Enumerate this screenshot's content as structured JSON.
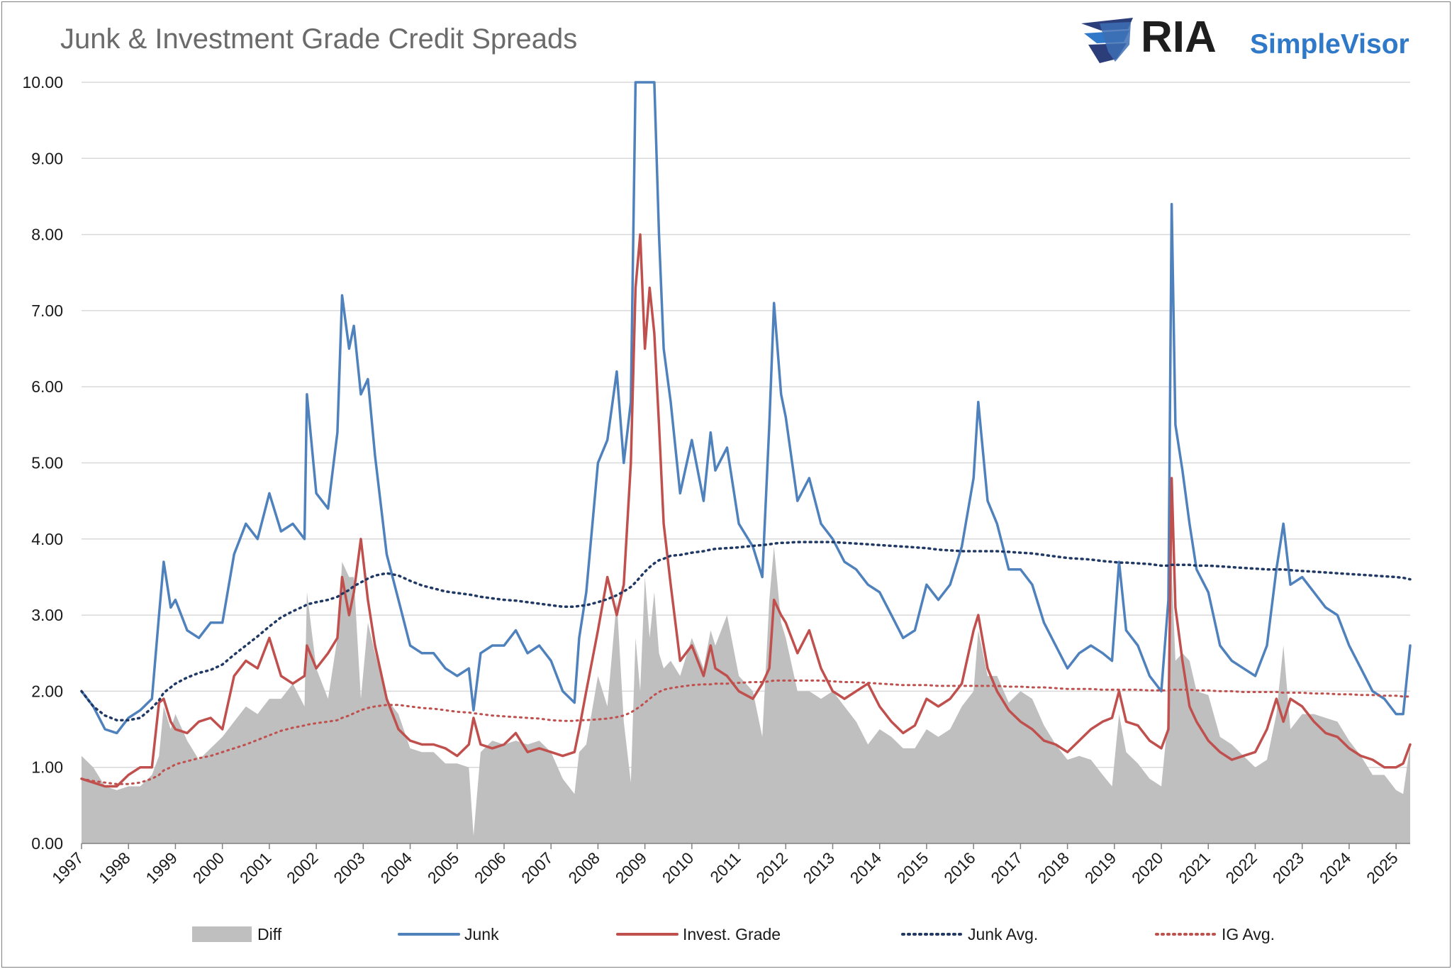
{
  "brand": {
    "name": "RIA",
    "product": "SimpleVisor"
  },
  "chart_data": {
    "type": "line",
    "title": "Junk & Investment Grade Credit Spreads",
    "xlabel": "",
    "ylabel": "",
    "ylim": [
      0,
      10
    ],
    "yticks": [
      "0.00",
      "1.00",
      "2.00",
      "3.00",
      "4.00",
      "5.00",
      "6.00",
      "7.00",
      "8.00",
      "9.00",
      "10.00"
    ],
    "xlim": [
      1997,
      2025.3
    ],
    "xticks": [
      "1997",
      "1998",
      "1999",
      "2000",
      "2001",
      "2002",
      "2003",
      "2004",
      "2005",
      "2006",
      "2007",
      "2008",
      "2009",
      "2010",
      "2011",
      "2012",
      "2013",
      "2014",
      "2015",
      "2016",
      "2017",
      "2018",
      "2019",
      "2020",
      "2021",
      "2022",
      "2023",
      "2024",
      "2025"
    ],
    "grid": true,
    "legend_position": "bottom",
    "colors": {
      "diff": "#bfbfbf",
      "junk": "#4f81bd",
      "ig": "#c0504d",
      "junk_avg": "#1f3864",
      "ig_avg": "#c0504d",
      "grid": "#d9d9d9"
    },
    "x": [
      1997.0,
      1997.25,
      1997.5,
      1997.75,
      1998.0,
      1998.25,
      1998.5,
      1998.65,
      1998.75,
      1998.9,
      1999.0,
      1999.25,
      1999.5,
      1999.75,
      2000.0,
      2000.25,
      2000.5,
      2000.75,
      2001.0,
      2001.25,
      2001.5,
      2001.75,
      2001.8,
      2002.0,
      2002.25,
      2002.45,
      2002.55,
      2002.7,
      2002.8,
      2002.95,
      2003.1,
      2003.25,
      2003.5,
      2003.75,
      2004.0,
      2004.25,
      2004.5,
      2004.75,
      2005.0,
      2005.25,
      2005.35,
      2005.5,
      2005.75,
      2006.0,
      2006.25,
      2006.5,
      2006.75,
      2007.0,
      2007.25,
      2007.5,
      2007.6,
      2007.75,
      2008.0,
      2008.2,
      2008.4,
      2008.55,
      2008.7,
      2008.8,
      2008.9,
      2009.0,
      2009.1,
      2009.2,
      2009.3,
      2009.4,
      2009.55,
      2009.75,
      2010.0,
      2010.25,
      2010.4,
      2010.5,
      2010.75,
      2011.0,
      2011.3,
      2011.5,
      2011.65,
      2011.75,
      2011.9,
      2012.0,
      2012.25,
      2012.5,
      2012.75,
      2013.0,
      2013.25,
      2013.5,
      2013.75,
      2014.0,
      2014.25,
      2014.5,
      2014.75,
      2015.0,
      2015.25,
      2015.5,
      2015.75,
      2016.0,
      2016.1,
      2016.3,
      2016.5,
      2016.75,
      2017.0,
      2017.25,
      2017.5,
      2017.75,
      2018.0,
      2018.25,
      2018.5,
      2018.75,
      2018.95,
      2019.1,
      2019.25,
      2019.5,
      2019.75,
      2020.0,
      2020.15,
      2020.22,
      2020.3,
      2020.45,
      2020.6,
      2020.75,
      2021.0,
      2021.25,
      2021.5,
      2021.75,
      2022.0,
      2022.25,
      2022.45,
      2022.6,
      2022.75,
      2023.0,
      2023.25,
      2023.5,
      2023.75,
      2024.0,
      2024.25,
      2024.5,
      2024.75,
      2025.0,
      2025.15,
      2025.3
    ],
    "series": [
      {
        "name": "Junk",
        "values": [
          2.0,
          1.8,
          1.5,
          1.45,
          1.65,
          1.75,
          1.9,
          3.0,
          3.7,
          3.1,
          3.2,
          2.8,
          2.7,
          2.9,
          2.9,
          3.8,
          4.2,
          4.0,
          4.6,
          4.1,
          4.2,
          4.0,
          5.9,
          4.6,
          4.4,
          5.4,
          7.2,
          6.5,
          6.8,
          5.9,
          6.1,
          5.1,
          3.8,
          3.2,
          2.6,
          2.5,
          2.5,
          2.3,
          2.2,
          2.3,
          1.75,
          2.5,
          2.6,
          2.6,
          2.8,
          2.5,
          2.6,
          2.4,
          2.0,
          1.85,
          2.7,
          3.3,
          5.0,
          5.3,
          6.2,
          5.0,
          5.8,
          10.0,
          10.0,
          10.0,
          10.0,
          10.0,
          8.0,
          6.5,
          5.8,
          4.6,
          5.3,
          4.5,
          5.4,
          4.9,
          5.2,
          4.2,
          3.9,
          3.5,
          5.5,
          7.1,
          5.9,
          5.6,
          4.5,
          4.8,
          4.2,
          4.0,
          3.7,
          3.6,
          3.4,
          3.3,
          3.0,
          2.7,
          2.8,
          3.4,
          3.2,
          3.4,
          3.9,
          4.8,
          5.8,
          4.5,
          4.2,
          3.6,
          3.6,
          3.4,
          2.9,
          2.6,
          2.3,
          2.5,
          2.6,
          2.5,
          2.4,
          3.7,
          2.8,
          2.6,
          2.2,
          2.0,
          3.2,
          8.4,
          5.5,
          4.9,
          4.2,
          3.6,
          3.3,
          2.6,
          2.4,
          2.3,
          2.2,
          2.6,
          3.6,
          4.2,
          3.4,
          3.5,
          3.3,
          3.1,
          3.0,
          2.6,
          2.3,
          2.0,
          1.9,
          1.7,
          1.7,
          2.6
        ]
      },
      {
        "name": "Invest. Grade",
        "values": [
          0.85,
          0.8,
          0.75,
          0.75,
          0.9,
          1.0,
          1.0,
          1.85,
          1.9,
          1.6,
          1.5,
          1.45,
          1.6,
          1.65,
          1.5,
          2.2,
          2.4,
          2.3,
          2.7,
          2.2,
          2.1,
          2.2,
          2.6,
          2.3,
          2.5,
          2.7,
          3.5,
          3.0,
          3.3,
          4.0,
          3.2,
          2.6,
          1.9,
          1.5,
          1.35,
          1.3,
          1.3,
          1.25,
          1.15,
          1.3,
          1.65,
          1.3,
          1.25,
          1.3,
          1.45,
          1.2,
          1.25,
          1.2,
          1.15,
          1.2,
          1.5,
          2.0,
          2.8,
          3.5,
          3.0,
          3.4,
          5.0,
          7.3,
          8.0,
          6.5,
          7.3,
          6.7,
          5.5,
          4.2,
          3.4,
          2.4,
          2.6,
          2.2,
          2.6,
          2.3,
          2.2,
          2.0,
          1.9,
          2.1,
          2.3,
          3.2,
          3.0,
          2.9,
          2.5,
          2.8,
          2.3,
          2.0,
          1.9,
          2.0,
          2.1,
          1.8,
          1.6,
          1.45,
          1.55,
          1.9,
          1.8,
          1.9,
          2.1,
          2.8,
          3.0,
          2.3,
          2.0,
          1.75,
          1.6,
          1.5,
          1.35,
          1.3,
          1.2,
          1.35,
          1.5,
          1.6,
          1.65,
          2.0,
          1.6,
          1.55,
          1.35,
          1.25,
          1.5,
          4.8,
          3.1,
          2.4,
          1.8,
          1.6,
          1.35,
          1.2,
          1.1,
          1.15,
          1.2,
          1.5,
          1.9,
          1.6,
          1.9,
          1.8,
          1.6,
          1.45,
          1.4,
          1.25,
          1.15,
          1.1,
          1.0,
          1.0,
          1.05,
          1.3
        ]
      },
      {
        "name": "Diff",
        "values": [
          1.15,
          1.0,
          0.75,
          0.7,
          0.75,
          0.75,
          0.9,
          1.15,
          1.8,
          1.5,
          1.7,
          1.35,
          1.1,
          1.25,
          1.4,
          1.6,
          1.8,
          1.7,
          1.9,
          1.9,
          2.1,
          1.8,
          3.3,
          2.3,
          1.9,
          2.7,
          3.7,
          3.5,
          3.5,
          1.9,
          2.9,
          2.5,
          1.9,
          1.7,
          1.25,
          1.2,
          1.2,
          1.05,
          1.05,
          1.0,
          0.1,
          1.2,
          1.35,
          1.3,
          1.35,
          1.3,
          1.35,
          1.2,
          0.85,
          0.65,
          1.2,
          1.3,
          2.2,
          1.8,
          3.2,
          1.6,
          0.8,
          2.7,
          2.0,
          3.5,
          2.7,
          3.3,
          2.5,
          2.3,
          2.4,
          2.2,
          2.7,
          2.3,
          2.8,
          2.6,
          3.0,
          2.2,
          2.0,
          1.4,
          3.2,
          3.9,
          2.9,
          2.7,
          2.0,
          2.0,
          1.9,
          2.0,
          1.8,
          1.6,
          1.3,
          1.5,
          1.4,
          1.25,
          1.25,
          1.5,
          1.4,
          1.5,
          1.8,
          2.0,
          2.8,
          2.2,
          2.2,
          1.85,
          2.0,
          1.9,
          1.55,
          1.3,
          1.1,
          1.15,
          1.1,
          0.9,
          0.75,
          1.7,
          1.2,
          1.05,
          0.85,
          0.75,
          1.7,
          3.6,
          2.4,
          2.5,
          2.4,
          2.0,
          1.95,
          1.4,
          1.3,
          1.15,
          1.0,
          1.1,
          1.7,
          2.6,
          1.5,
          1.7,
          1.7,
          1.65,
          1.6,
          1.35,
          1.15,
          0.9,
          0.9,
          0.7,
          0.65,
          1.3
        ]
      },
      {
        "name": "Junk Avg.",
        "values": [
          2.0,
          1.8,
          1.68,
          1.62,
          1.62,
          1.65,
          1.78,
          1.88,
          1.98,
          2.05,
          2.1,
          2.18,
          2.24,
          2.28,
          2.35,
          2.48,
          2.6,
          2.72,
          2.85,
          2.97,
          3.05,
          3.12,
          3.14,
          3.17,
          3.2,
          3.24,
          3.28,
          3.33,
          3.38,
          3.43,
          3.48,
          3.52,
          3.55,
          3.52,
          3.45,
          3.39,
          3.35,
          3.31,
          3.29,
          3.27,
          3.26,
          3.24,
          3.22,
          3.2,
          3.19,
          3.17,
          3.15,
          3.13,
          3.11,
          3.11,
          3.12,
          3.13,
          3.17,
          3.21,
          3.26,
          3.31,
          3.37,
          3.43,
          3.5,
          3.57,
          3.63,
          3.68,
          3.72,
          3.74,
          3.78,
          3.79,
          3.82,
          3.84,
          3.86,
          3.87,
          3.88,
          3.89,
          3.91,
          3.92,
          3.93,
          3.94,
          3.95,
          3.95,
          3.96,
          3.96,
          3.96,
          3.96,
          3.95,
          3.94,
          3.93,
          3.92,
          3.91,
          3.9,
          3.89,
          3.88,
          3.86,
          3.85,
          3.84,
          3.84,
          3.84,
          3.84,
          3.84,
          3.83,
          3.82,
          3.81,
          3.79,
          3.77,
          3.75,
          3.74,
          3.73,
          3.71,
          3.7,
          3.69,
          3.69,
          3.68,
          3.67,
          3.65,
          3.65,
          3.66,
          3.66,
          3.66,
          3.66,
          3.65,
          3.65,
          3.64,
          3.63,
          3.62,
          3.61,
          3.6,
          3.6,
          3.6,
          3.59,
          3.58,
          3.57,
          3.56,
          3.55,
          3.54,
          3.53,
          3.52,
          3.51,
          3.5,
          3.49,
          3.47
        ]
      },
      {
        "name": "IG Avg.",
        "values": [
          0.85,
          0.82,
          0.8,
          0.78,
          0.78,
          0.8,
          0.85,
          0.9,
          0.96,
          1.0,
          1.04,
          1.08,
          1.12,
          1.15,
          1.2,
          1.25,
          1.3,
          1.36,
          1.42,
          1.48,
          1.52,
          1.55,
          1.56,
          1.58,
          1.6,
          1.62,
          1.65,
          1.68,
          1.71,
          1.75,
          1.78,
          1.8,
          1.82,
          1.82,
          1.8,
          1.78,
          1.77,
          1.75,
          1.73,
          1.72,
          1.71,
          1.7,
          1.68,
          1.67,
          1.66,
          1.65,
          1.64,
          1.62,
          1.61,
          1.61,
          1.62,
          1.62,
          1.63,
          1.64,
          1.66,
          1.68,
          1.72,
          1.76,
          1.8,
          1.85,
          1.9,
          1.95,
          1.99,
          2.02,
          2.04,
          2.06,
          2.08,
          2.09,
          2.09,
          2.1,
          2.1,
          2.11,
          2.12,
          2.12,
          2.13,
          2.14,
          2.14,
          2.14,
          2.14,
          2.14,
          2.14,
          2.13,
          2.12,
          2.12,
          2.11,
          2.1,
          2.09,
          2.08,
          2.08,
          2.08,
          2.07,
          2.07,
          2.07,
          2.07,
          2.07,
          2.07,
          2.07,
          2.06,
          2.06,
          2.05,
          2.05,
          2.04,
          2.03,
          2.03,
          2.03,
          2.02,
          2.02,
          2.02,
          2.02,
          2.02,
          2.01,
          2.01,
          2.01,
          2.02,
          2.02,
          2.02,
          2.02,
          2.01,
          2.01,
          2.0,
          2.0,
          1.99,
          1.99,
          1.99,
          1.99,
          1.98,
          1.98,
          1.98,
          1.97,
          1.97,
          1.96,
          1.96,
          1.95,
          1.95,
          1.94,
          1.94,
          1.93,
          1.93
        ]
      }
    ]
  }
}
